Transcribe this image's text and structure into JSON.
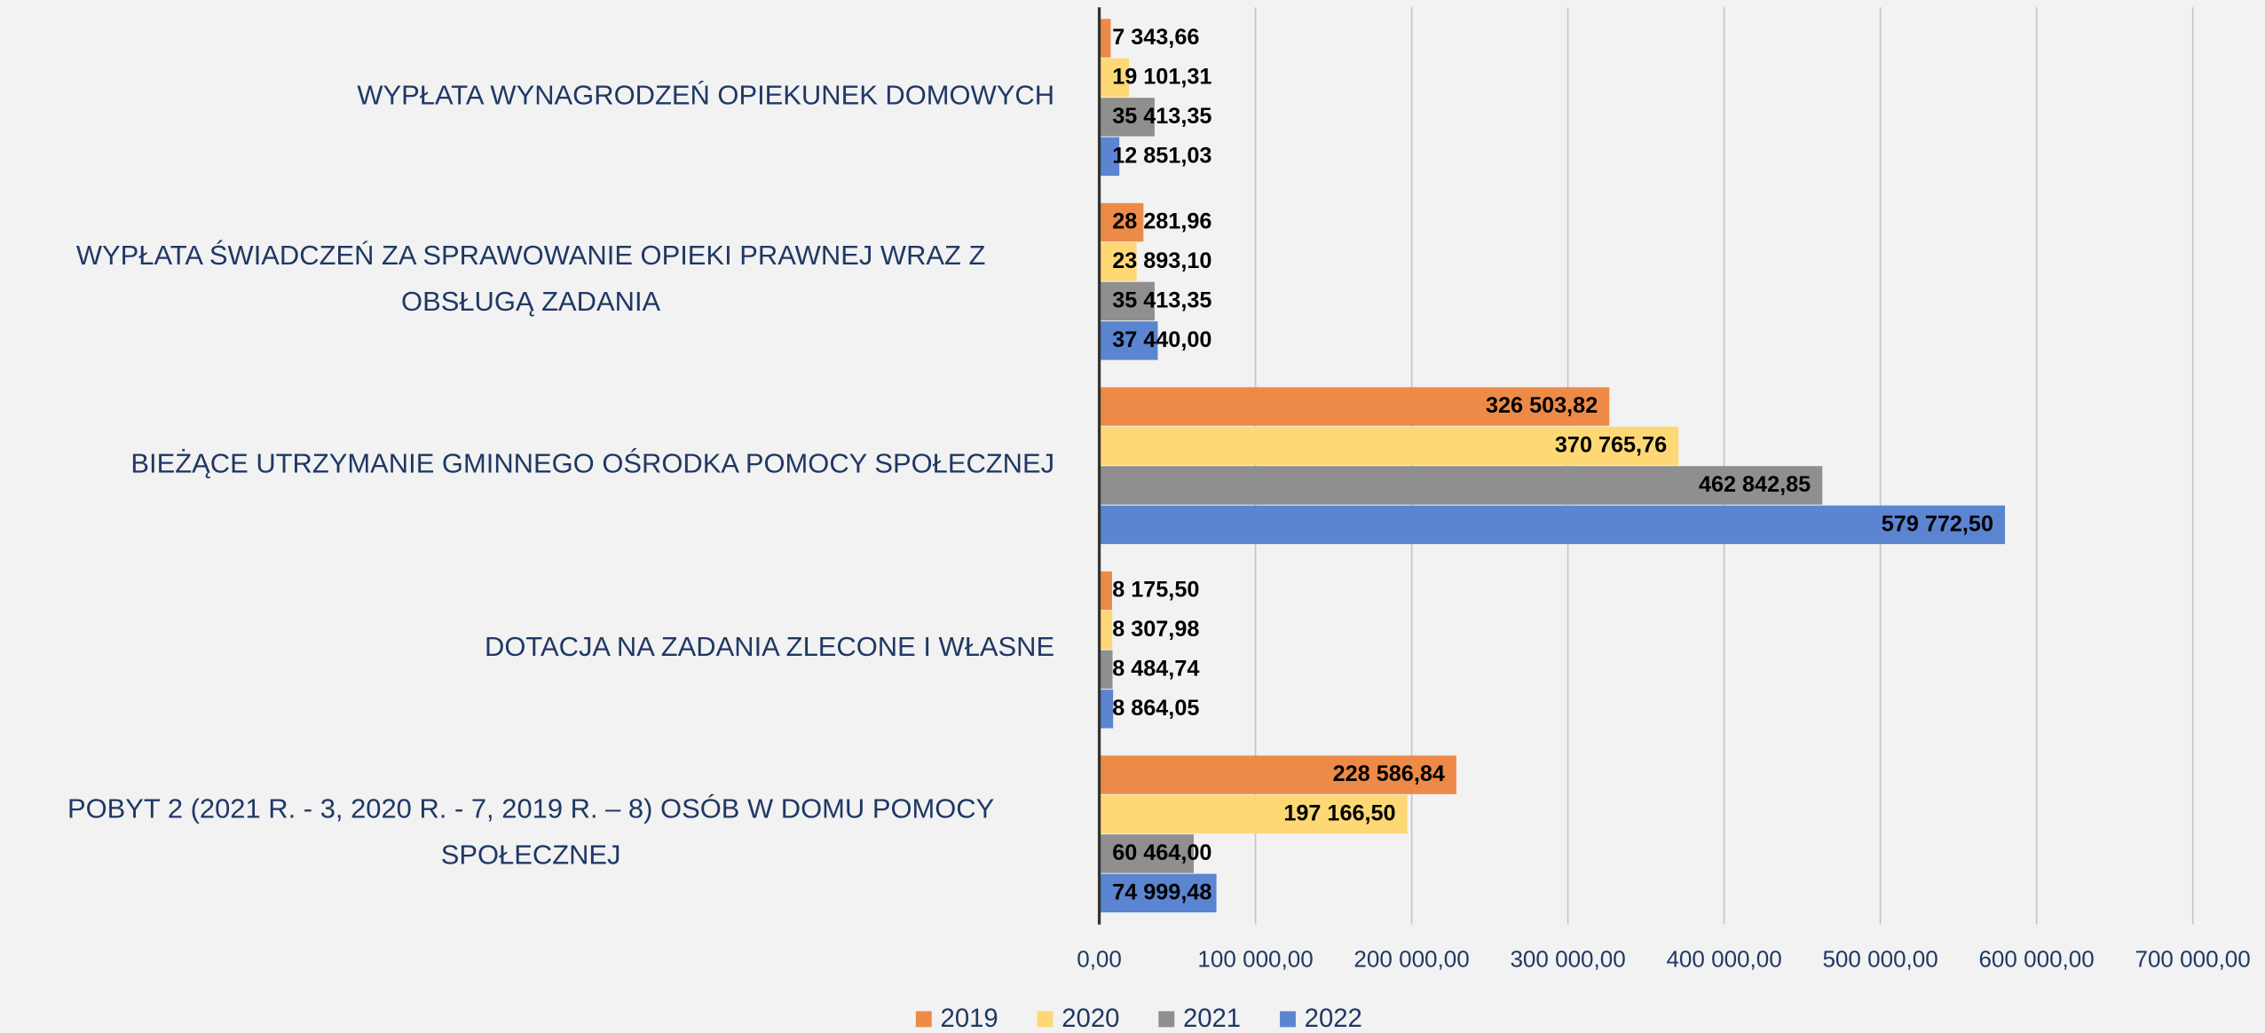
{
  "chart_data": {
    "type": "bar",
    "orientation": "horizontal",
    "categories": [
      "WYPŁATA WYNAGRODZEŃ OPIEKUNEK DOMOWYCH",
      "WYPŁATA ŚWIADCZEŃ ZA SPRAWOWANIE OPIEKI PRAWNEJ WRAZ Z OBSŁUGĄ ZADANIA",
      "BIEŻĄCE UTRZYMANIE GMINNEGO OŚRODKA POMOCY SPOŁECZNEJ",
      "DOTACJA NA ZADANIA ZLECONE I WŁASNE",
      "POBYT 2 (2021 R. - 3, 2020 R. - 7, 2019 R. – 8) OSÓB W DOMU POMOCY SPOŁECZNEJ"
    ],
    "series": [
      {
        "name": "2019",
        "color": "#ee8a48",
        "values": [
          7343.66,
          28281.96,
          326503.82,
          8175.5,
          228586.84
        ],
        "value_labels": [
          "7 343,66",
          "28 281,96",
          "326 503,82",
          "8 175,50",
          "228 586,84"
        ]
      },
      {
        "name": "2020",
        "color": "#fdd874",
        "values": [
          19101.31,
          23893.1,
          370765.76,
          8307.98,
          197166.5
        ],
        "value_labels": [
          "19 101,31",
          "23 893,10",
          "370 765,76",
          "8 307,98",
          "197 166,50"
        ]
      },
      {
        "name": "2021",
        "color": "#8f8f8f",
        "values": [
          35413.35,
          35413.35,
          462842.85,
          8484.74,
          60464.0
        ],
        "value_labels": [
          "35 413,35",
          "35 413,35",
          "462 842,85",
          "8 484,74",
          "60 464,00"
        ]
      },
      {
        "name": "2022",
        "color": "#5b84d1",
        "values": [
          12851.03,
          37440.0,
          579772.5,
          8864.05,
          74999.48
        ],
        "value_labels": [
          "12 851,03",
          "37 440,00",
          "579 772,50",
          "8 864,05",
          "74 999,48"
        ]
      }
    ],
    "xlim": [
      0,
      700000
    ],
    "xticks": [
      {
        "value": 0,
        "label": "0,00"
      },
      {
        "value": 100000,
        "label": "100 000,00"
      },
      {
        "value": 200000,
        "label": "200 000,00"
      },
      {
        "value": 300000,
        "label": "300 000,00"
      },
      {
        "value": 400000,
        "label": "400 000,00"
      },
      {
        "value": 500000,
        "label": "500 000,00"
      },
      {
        "value": 600000,
        "label": "600 000,00"
      },
      {
        "value": 700000,
        "label": "700 000,00"
      }
    ],
    "grid": true,
    "legend": "bottom"
  }
}
